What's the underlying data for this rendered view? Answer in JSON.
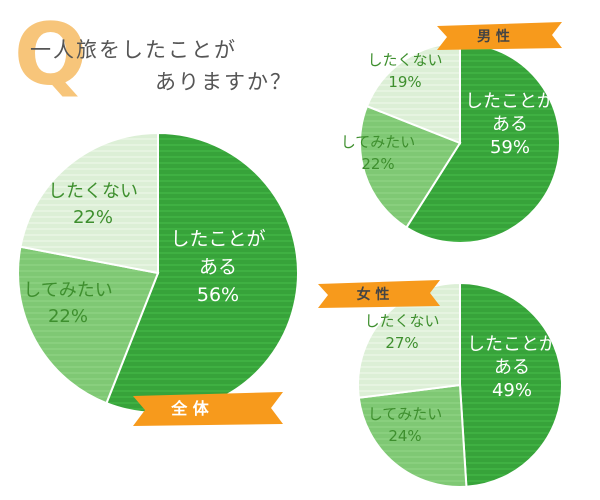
{
  "heading": {
    "q_letter": "Q",
    "line1": "一人旅をしたことが",
    "line2": "ありますか？"
  },
  "colors": {
    "yes": "#37a33a",
    "want": "#7fc874",
    "no": "#dcefd6",
    "banner": "#f79a1c",
    "q_letter": "#f7c57a"
  },
  "chart_data": [
    {
      "type": "pie",
      "title": "全 体",
      "slices": [
        {
          "label": "したことがある",
          "value": 56
        },
        {
          "label": "してみたい",
          "value": 22
        },
        {
          "label": "したくない",
          "value": 22
        }
      ],
      "value_labels": [
        "56%",
        "22%",
        "22%"
      ]
    },
    {
      "type": "pie",
      "title": "男 性",
      "slices": [
        {
          "label": "したことがある",
          "value": 59
        },
        {
          "label": "してみたい",
          "value": 22
        },
        {
          "label": "したくない",
          "value": 19
        }
      ],
      "value_labels": [
        "59%",
        "22%",
        "19%"
      ]
    },
    {
      "type": "pie",
      "title": "女 性",
      "slices": [
        {
          "label": "したことがある",
          "value": 49
        },
        {
          "label": "してみたい",
          "value": 24
        },
        {
          "label": "したくない",
          "value": 27
        }
      ],
      "value_labels": [
        "49%",
        "24%",
        "27%"
      ]
    }
  ]
}
